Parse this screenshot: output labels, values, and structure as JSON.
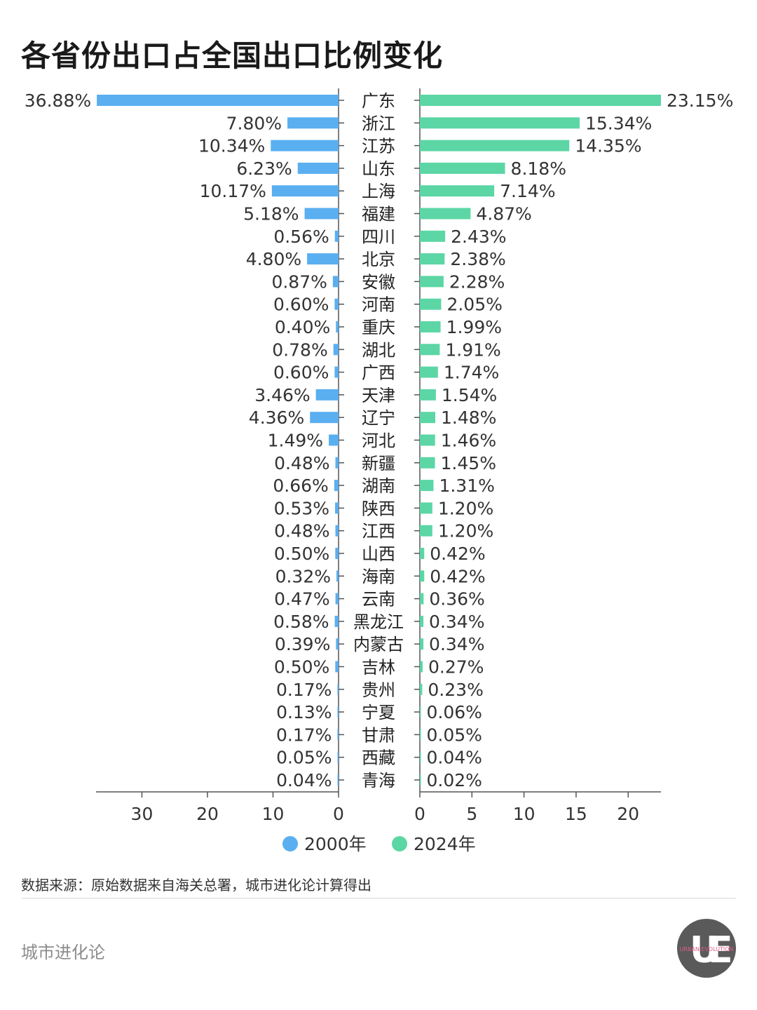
{
  "title": "各省份出口占全国出口比例变化",
  "source": "数据来源：原始数据来自海关总署，城市进化论计算得出",
  "brand": "城市进化论",
  "logo_text": "URBAN EVOLUTION",
  "colors": {
    "series_2000": "#5aaff0",
    "series_2024": "#5cd6a5",
    "axis": "#555555"
  },
  "chart_data": {
    "type": "bar",
    "orientation": "horizontal-butterfly",
    "categories": [
      "广东",
      "浙江",
      "江苏",
      "山东",
      "上海",
      "福建",
      "四川",
      "北京",
      "安徽",
      "河南",
      "重庆",
      "湖北",
      "广西",
      "天津",
      "辽宁",
      "河北",
      "新疆",
      "湖南",
      "陕西",
      "江西",
      "山西",
      "海南",
      "云南",
      "黑龙江",
      "内蒙古",
      "吉林",
      "贵州",
      "宁夏",
      "甘肃",
      "西藏",
      "青海"
    ],
    "series": [
      {
        "name": "2000年",
        "values": [
          36.88,
          7.8,
          10.34,
          6.23,
          10.17,
          5.18,
          0.56,
          4.8,
          0.87,
          0.6,
          0.4,
          0.78,
          0.6,
          3.46,
          4.36,
          1.49,
          0.48,
          0.66,
          0.53,
          0.48,
          0.5,
          0.32,
          0.47,
          0.58,
          0.39,
          0.5,
          0.17,
          0.13,
          0.17,
          0.05,
          0.04
        ],
        "labels": [
          "36.88%",
          "7.80%",
          "10.34%",
          "6.23%",
          "10.17%",
          "5.18%",
          "0.56%",
          "4.80%",
          "0.87%",
          "0.60%",
          "0.40%",
          "0.78%",
          "0.60%",
          "3.46%",
          "4.36%",
          "1.49%",
          "0.48%",
          "0.66%",
          "0.53%",
          "0.48%",
          "0.50%",
          "0.32%",
          "0.47%",
          "0.58%",
          "0.39%",
          "0.50%",
          "0.17%",
          "0.13%",
          "0.17%",
          "0.05%",
          "0.04%"
        ],
        "xlim": [
          0,
          37
        ],
        "ticks": [
          30,
          20,
          10,
          0
        ]
      },
      {
        "name": "2024年",
        "values": [
          23.15,
          15.34,
          14.35,
          8.18,
          7.14,
          4.87,
          2.43,
          2.38,
          2.28,
          2.05,
          1.99,
          1.91,
          1.74,
          1.54,
          1.48,
          1.46,
          1.45,
          1.31,
          1.2,
          1.2,
          0.42,
          0.42,
          0.36,
          0.34,
          0.34,
          0.27,
          0.23,
          0.06,
          0.05,
          0.04,
          0.02
        ],
        "labels": [
          "23.15%",
          "15.34%",
          "14.35%",
          "8.18%",
          "7.14%",
          "4.87%",
          "2.43%",
          "2.38%",
          "2.28%",
          "2.05%",
          "1.99%",
          "1.91%",
          "1.74%",
          "1.54%",
          "1.48%",
          "1.46%",
          "1.45%",
          "1.31%",
          "1.20%",
          "1.20%",
          "0.42%",
          "0.42%",
          "0.36%",
          "0.34%",
          "0.34%",
          "0.27%",
          "0.23%",
          "0.06%",
          "0.05%",
          "0.04%",
          "0.02%"
        ],
        "xlim": [
          0,
          23.15
        ],
        "ticks": [
          0,
          5,
          10,
          15,
          20
        ]
      }
    ],
    "legend": {
      "placement": "bottom-center"
    }
  }
}
